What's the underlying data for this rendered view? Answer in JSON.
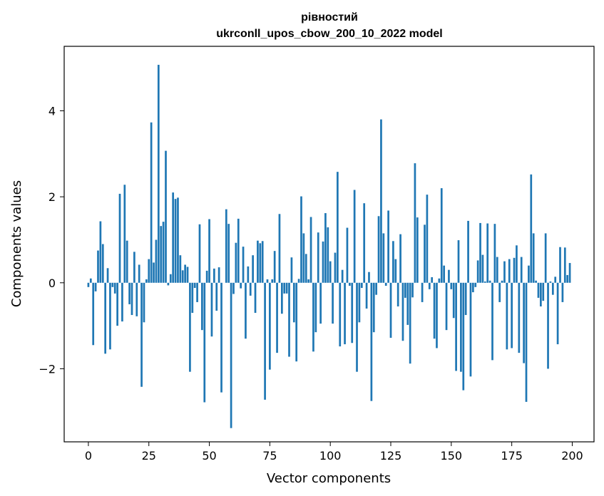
{
  "chart_data": {
    "type": "bar",
    "title_line1": "рівностий",
    "title_line2": "ukrconll_upos_cbow_200_10_2022 model",
    "xlabel": "Vector components",
    "ylabel": "Components values",
    "xlim": [
      -10,
      209
    ],
    "ylim": [
      -3.7,
      5.5
    ],
    "xticks": [
      0,
      25,
      50,
      75,
      100,
      125,
      150,
      175,
      200
    ],
    "yticks": [
      -2,
      0,
      2,
      4
    ],
    "grid": false,
    "bar_color": "#1f77b4",
    "x": [
      0,
      1,
      2,
      3,
      4,
      5,
      6,
      7,
      8,
      9,
      10,
      11,
      12,
      13,
      14,
      15,
      16,
      17,
      18,
      19,
      20,
      21,
      22,
      23,
      24,
      25,
      26,
      27,
      28,
      29,
      30,
      31,
      32,
      33,
      34,
      35,
      36,
      37,
      38,
      39,
      40,
      41,
      42,
      43,
      44,
      45,
      46,
      47,
      48,
      49,
      50,
      51,
      52,
      53,
      54,
      55,
      56,
      57,
      58,
      59,
      60,
      61,
      62,
      63,
      64,
      65,
      66,
      67,
      68,
      69,
      70,
      71,
      72,
      73,
      74,
      75,
      76,
      77,
      78,
      79,
      80,
      81,
      82,
      83,
      84,
      85,
      86,
      87,
      88,
      89,
      90,
      91,
      92,
      93,
      94,
      95,
      96,
      97,
      98,
      99,
      100,
      101,
      102,
      103,
      104,
      105,
      106,
      107,
      108,
      109,
      110,
      111,
      112,
      113,
      114,
      115,
      116,
      117,
      118,
      119,
      120,
      121,
      122,
      123,
      124,
      125,
      126,
      127,
      128,
      129,
      130,
      131,
      132,
      133,
      134,
      135,
      136,
      137,
      138,
      139,
      140,
      141,
      142,
      143,
      144,
      145,
      146,
      147,
      148,
      149,
      150,
      151,
      152,
      153,
      154,
      155,
      156,
      157,
      158,
      159,
      160,
      161,
      162,
      163,
      164,
      165,
      166,
      167,
      168,
      169,
      170,
      171,
      172,
      173,
      174,
      175,
      176,
      177,
      178,
      179,
      180,
      181,
      182,
      183,
      184,
      185,
      186,
      187,
      188,
      189,
      190,
      191,
      192,
      193,
      194,
      195,
      196,
      197,
      198,
      199
    ],
    "values": [
      -0.1,
      0.1,
      -1.45,
      -0.2,
      0.75,
      1.43,
      0.9,
      -1.65,
      0.34,
      -1.55,
      -0.1,
      -0.25,
      -1.0,
      2.07,
      -0.9,
      2.28,
      0.98,
      -0.5,
      -0.75,
      0.72,
      -0.78,
      0.42,
      -2.42,
      -0.92,
      0.08,
      0.55,
      3.73,
      0.47,
      1.0,
      5.07,
      1.32,
      1.42,
      3.07,
      -0.06,
      0.2,
      2.1,
      1.95,
      1.98,
      0.64,
      0.29,
      0.42,
      0.37,
      -2.07,
      -0.7,
      -0.12,
      -0.45,
      1.36,
      -1.1,
      -2.78,
      0.28,
      1.48,
      -1.25,
      0.33,
      -0.65,
      0.36,
      -2.55,
      0.0,
      1.71,
      1.37,
      -3.38,
      -0.26,
      0.93,
      1.49,
      -0.13,
      0.84,
      -1.3,
      0.38,
      -0.3,
      0.64,
      -0.7,
      0.98,
      0.92,
      0.97,
      -2.72,
      0.08,
      -2.02,
      0.08,
      0.74,
      -1.63,
      1.6,
      -0.72,
      -0.25,
      -0.25,
      -1.72,
      0.59,
      -0.92,
      -1.83,
      0.09,
      2.01,
      1.15,
      0.67,
      0.08,
      1.53,
      -1.6,
      -1.15,
      1.17,
      -0.95,
      0.96,
      1.62,
      1.29,
      0.5,
      -0.95,
      0.7,
      2.58,
      -1.48,
      0.3,
      -1.43,
      1.28,
      -0.07,
      -1.4,
      2.16,
      -2.07,
      -0.92,
      -0.12,
      1.85,
      -0.6,
      0.25,
      -2.75,
      -1.15,
      -0.28,
      1.55,
      3.8,
      1.15,
      -0.07,
      1.68,
      -1.28,
      0.97,
      0.55,
      -0.55,
      1.13,
      -1.35,
      -0.35,
      -0.98,
      -1.88,
      -0.34,
      2.78,
      1.52,
      0.0,
      -0.45,
      1.35,
      2.05,
      -0.15,
      0.13,
      -1.3,
      -1.52,
      0.1,
      2.2,
      0.4,
      -1.1,
      0.3,
      -0.15,
      -0.82,
      -2.05,
      0.99,
      -2.07,
      -2.5,
      -0.75,
      1.44,
      -2.18,
      -0.22,
      -0.1,
      0.52,
      1.39,
      0.65,
      0.03,
      1.38,
      0.05,
      -1.8,
      1.37,
      0.6,
      -0.45,
      0.05,
      0.5,
      -1.55,
      0.55,
      -1.52,
      0.58,
      0.87,
      -1.63,
      0.6,
      -1.87,
      -2.77,
      0.4,
      2.52,
      1.15,
      0.05,
      -0.35,
      -0.55,
      -0.42,
      1.15,
      -2.0,
      0.03,
      -0.28,
      0.14,
      -1.43,
      0.83,
      -0.45,
      0.82,
      0.18,
      0.46
    ]
  }
}
